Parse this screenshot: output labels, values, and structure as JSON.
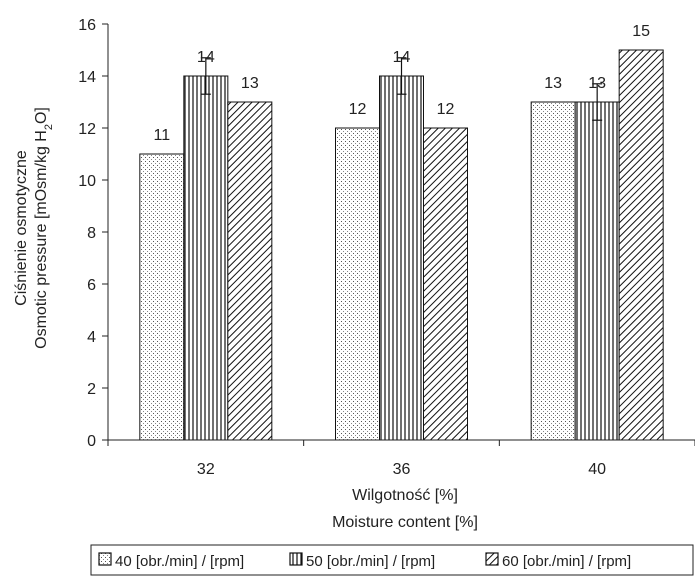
{
  "chart_data": {
    "type": "bar",
    "categories": [
      "32",
      "36",
      "40"
    ],
    "series": [
      {
        "name": "40 [obr./min] / [rpm]",
        "values": [
          11,
          12,
          13
        ],
        "pattern": "dots",
        "error": [
          null,
          null,
          null
        ]
      },
      {
        "name": "50 [obr./min] / [rpm]",
        "values": [
          14,
          14,
          13
        ],
        "pattern": "vertical",
        "error": [
          0.7,
          0.7,
          0.7
        ]
      },
      {
        "name": "60 [obr./min] / [rpm]",
        "values": [
          13,
          12,
          15
        ],
        "pattern": "diagonal",
        "error": [
          null,
          null,
          null
        ]
      }
    ],
    "data_labels": [
      [
        "11",
        "12",
        "13"
      ],
      [
        "14",
        "14",
        "13"
      ],
      [
        "13",
        "12",
        "15"
      ]
    ],
    "xlabel": [
      "Wilgotność [%]",
      "Moisture content [%]"
    ],
    "ylabel": [
      "Ciśnienie osmotyczne",
      "Osmotic pressure [mOsm/kg H",
      "2",
      "O]"
    ],
    "ylim": [
      0,
      16
    ],
    "yticks": [
      0,
      2,
      4,
      6,
      8,
      10,
      12,
      14,
      16
    ],
    "grid": false,
    "legend": "bottom"
  }
}
